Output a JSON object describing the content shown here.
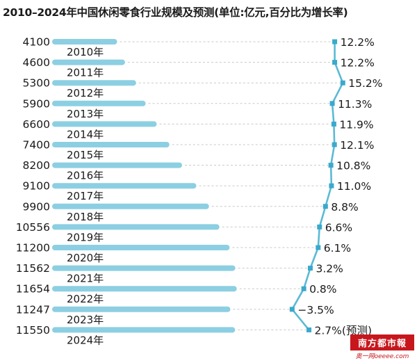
{
  "chart_data": {
    "type": "bar",
    "title": "2010–2024年中国休闲零食行业规模及预测(单位:亿元,百分比为增长率)",
    "categories": [
      "2010年",
      "2011年",
      "2012年",
      "2013年",
      "2014年",
      "2015年",
      "2016年",
      "2017年",
      "2018年",
      "2019年",
      "2020年",
      "2021年",
      "2022年",
      "2023年",
      "2024年"
    ],
    "values": [
      4100,
      4600,
      5300,
      5900,
      6600,
      7400,
      8200,
      9100,
      9900,
      10556,
      11200,
      11562,
      11654,
      11247,
      11550
    ],
    "value_labels": [
      "4100",
      "4600",
      "5300",
      "5900",
      "6600",
      "7400",
      "8200",
      "9100",
      "9900",
      "10556",
      "11200",
      "11562",
      "11654",
      "11247",
      "11550"
    ],
    "growth_values": [
      12.2,
      12.2,
      15.2,
      11.3,
      11.9,
      12.1,
      10.8,
      11.0,
      8.8,
      6.6,
      6.1,
      3.2,
      0.8,
      -3.5,
      2.7
    ],
    "growth_labels": [
      "12.2%",
      "12.2%",
      "15.2%",
      "11.3%",
      "11.9%",
      "12.1%",
      "10.8%",
      "11.0%",
      "8.8%",
      "6.6%",
      "6.1%",
      "3.2%",
      "0.8%",
      "−3.5%",
      "2.7%(预测)"
    ],
    "orientation": "horizontal",
    "colors": {
      "bar": "#8ccfe2",
      "line": "#5bbad5",
      "marker": "#3aa9cc",
      "text": "#1a1a1a"
    }
  },
  "logo": {
    "top": "南方都市報",
    "bottom": "奥一网oeeee.com"
  }
}
